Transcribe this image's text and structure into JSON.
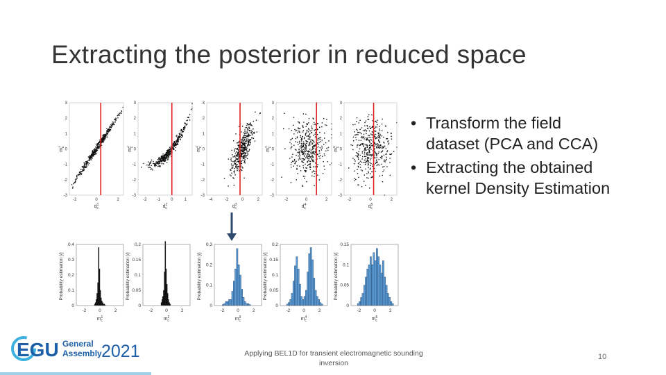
{
  "slide": {
    "title": "Extracting the posterior in reduced space",
    "bullets": [
      "Transform the field dataset (PCA and CCA)",
      "Extracting the obtained kernel Density Estimation"
    ],
    "footer": "Applying BEL1D for transient electromagnetic sounding inversion",
    "page_number": "10",
    "logo": {
      "main": "EGU",
      "line1": "General",
      "line2": "Assembly",
      "year": "2021"
    }
  },
  "colors": {
    "accent": "#e02020",
    "hist_fill": "#5b9bd5",
    "egu_blue": "#1d5fa8",
    "egu_cyan": "#3cb0de"
  },
  "chart_data": [
    {
      "type": "scatter",
      "xlabel": "d1c",
      "ylabel": "m1c",
      "xticks": [
        "-2",
        "0",
        "2"
      ],
      "yticks": [
        "3",
        "2",
        "1",
        "0",
        "-1",
        "-2",
        "-3"
      ],
      "ylim": [
        -3,
        3
      ],
      "xlim": [
        -2.5,
        2.5
      ],
      "red_line_x": 0.4,
      "description_pattern": "strong-linear"
    },
    {
      "type": "scatter",
      "xlabel": "d2c",
      "ylabel": "m2c",
      "xticks": [
        "-2",
        "-1",
        "0",
        "1"
      ],
      "yticks": [
        "3",
        "2",
        "1",
        "0",
        "-1",
        "-2",
        "-3"
      ],
      "ylim": [
        -3,
        3
      ],
      "xlim": [
        -2.5,
        1.5
      ],
      "red_line_x": 0.0,
      "description_pattern": "strong-curved"
    },
    {
      "type": "scatter",
      "xlabel": "d3c",
      "ylabel": "m3c",
      "xticks": [
        "-4",
        "-2",
        "0",
        "2"
      ],
      "yticks": [
        "3",
        "2",
        "1",
        "0",
        "-1",
        "-2",
        "-3"
      ],
      "ylim": [
        -3,
        3
      ],
      "xlim": [
        -4.5,
        2.5
      ],
      "red_line_x": -0.3,
      "description_pattern": "medium"
    },
    {
      "type": "scatter",
      "xlabel": "d4c",
      "ylabel": "m4c",
      "xticks": [
        "-2",
        "0",
        "2"
      ],
      "yticks": [
        "3",
        "2",
        "1",
        "0",
        "-1",
        "-2",
        "-3"
      ],
      "ylim": [
        -3,
        3
      ],
      "xlim": [
        -3,
        2.5
      ],
      "red_line_x": 1.0,
      "description_pattern": "weak"
    },
    {
      "type": "scatter",
      "xlabel": "d5c",
      "ylabel": "m5c",
      "xticks": [
        "-2",
        "0",
        "2"
      ],
      "yticks": [
        "3",
        "2",
        "1",
        "0",
        "-1",
        "-2",
        "-3"
      ],
      "ylim": [
        -3,
        3
      ],
      "xlim": [
        -2.5,
        2.5
      ],
      "red_line_x": 0.3,
      "description_pattern": "weak"
    },
    {
      "type": "bar",
      "ylabel": "Probability estimation [/]",
      "xlabel": "m1c",
      "xticks": [
        "-2",
        "0",
        "2"
      ],
      "yticks": [
        "0.4",
        "0.3",
        "0.2",
        "0.1",
        "0"
      ],
      "ylim": [
        0,
        0.4
      ],
      "xlim": [
        -3,
        3
      ],
      "bins": [
        -0.7,
        -0.6,
        -0.5,
        -0.4,
        -0.3,
        -0.2,
        -0.1,
        0.0,
        0.1,
        0.2,
        0.3,
        0.4,
        0.5,
        0.6
      ],
      "values": [
        0.01,
        0.02,
        0.04,
        0.08,
        0.15,
        0.38,
        0.24,
        0.1,
        0.05,
        0.03,
        0.02,
        0.01,
        0.01,
        0.005
      ],
      "style": "black"
    },
    {
      "type": "bar",
      "ylabel": "Probability estimation [/]",
      "xlabel": "m2c",
      "xticks": [
        "-2",
        "0",
        "2"
      ],
      "yticks": [
        "0.2",
        "0.15",
        "0.1",
        "0.05",
        "0"
      ],
      "ylim": [
        0,
        0.2
      ],
      "xlim": [
        -3,
        3
      ],
      "bins": [
        -0.7,
        -0.6,
        -0.5,
        -0.4,
        -0.3,
        -0.2,
        -0.1,
        0.0,
        0.1,
        0.2,
        0.3,
        0.4
      ],
      "values": [
        0.01,
        0.02,
        0.03,
        0.05,
        0.11,
        0.21,
        0.12,
        0.07,
        0.04,
        0.02,
        0.01,
        0.005
      ],
      "style": "black"
    },
    {
      "type": "bar",
      "ylabel": "Probability estimation [/]",
      "xlabel": "m3c",
      "xticks": [
        "-2",
        "0",
        "2"
      ],
      "yticks": [
        "0.3",
        "0.2",
        "0.1",
        "0"
      ],
      "ylim": [
        0,
        0.3
      ],
      "xlim": [
        -3,
        3
      ],
      "bins": [
        -2.0,
        -1.8,
        -1.6,
        -1.4,
        -1.2,
        -1.0,
        -0.8,
        -0.6,
        -0.4,
        -0.2,
        0.0,
        0.2,
        0.4,
        0.6,
        0.8,
        1.0,
        1.2,
        1.4
      ],
      "values": [
        0.005,
        0.01,
        0.02,
        0.02,
        0.03,
        0.03,
        0.07,
        0.12,
        0.18,
        0.28,
        0.2,
        0.15,
        0.08,
        0.04,
        0.02,
        0.01,
        0.01,
        0.005
      ],
      "style": "blue"
    },
    {
      "type": "bar",
      "ylabel": "Probability estimation [/]",
      "xlabel": "m4c",
      "xticks": [
        "-2",
        "0",
        "2"
      ],
      "yticks": [
        "0.2",
        "0.15",
        "0.1",
        "0.05",
        "0"
      ],
      "ylim": [
        0,
        0.2
      ],
      "xlim": [
        -3,
        3
      ],
      "bins": [
        -2.2,
        -2.0,
        -1.8,
        -1.6,
        -1.4,
        -1.2,
        -1.0,
        -0.8,
        -0.6,
        -0.4,
        -0.2,
        0.0,
        0.2,
        0.4,
        0.6,
        0.8,
        1.0,
        1.2,
        1.4,
        1.6,
        1.8,
        2.0,
        2.2
      ],
      "values": [
        0.005,
        0.01,
        0.02,
        0.04,
        0.08,
        0.13,
        0.16,
        0.12,
        0.07,
        0.03,
        0.02,
        0.03,
        0.05,
        0.11,
        0.17,
        0.19,
        0.15,
        0.09,
        0.05,
        0.03,
        0.02,
        0.01,
        0.005
      ],
      "style": "blue"
    },
    {
      "type": "bar",
      "ylabel": "Probability estimation [/]",
      "xlabel": "m5c",
      "xticks": [
        "-2",
        "0",
        "2"
      ],
      "yticks": [
        "0.15",
        "0.1",
        "0.05",
        "0"
      ],
      "ylim": [
        0,
        0.15
      ],
      "xlim": [
        -3,
        3
      ],
      "bins": [
        -2.2,
        -2.0,
        -1.8,
        -1.6,
        -1.4,
        -1.2,
        -1.0,
        -0.8,
        -0.6,
        -0.4,
        -0.2,
        0.0,
        0.2,
        0.4,
        0.6,
        0.8,
        1.0,
        1.2,
        1.4,
        1.6,
        1.8,
        2.0,
        2.2
      ],
      "values": [
        0.005,
        0.01,
        0.02,
        0.03,
        0.05,
        0.07,
        0.09,
        0.1,
        0.12,
        0.1,
        0.13,
        0.11,
        0.14,
        0.12,
        0.1,
        0.08,
        0.11,
        0.07,
        0.05,
        0.03,
        0.02,
        0.01,
        0.005
      ],
      "style": "blue"
    }
  ]
}
